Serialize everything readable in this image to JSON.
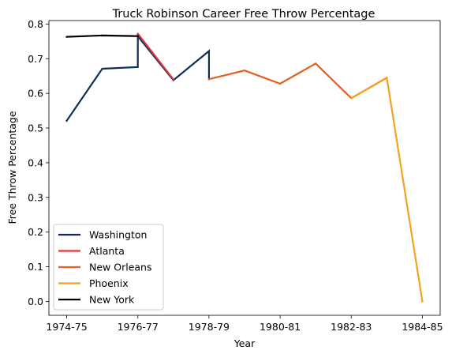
{
  "chart_data": {
    "type": "line",
    "title": "Truck Robinson Career Free Throw Percentage",
    "xlabel": "Year",
    "ylabel": "Free Throw Percentage",
    "xlim": [
      -0.5,
      10.5
    ],
    "ylim": [
      -0.04,
      0.81
    ],
    "x_ticks": [
      {
        "x": 0,
        "label": "1974-75"
      },
      {
        "x": 2,
        "label": "1976-77"
      },
      {
        "x": 4,
        "label": "1978-79"
      },
      {
        "x": 6,
        "label": "1980-81"
      },
      {
        "x": 8,
        "label": "1982-83"
      },
      {
        "x": 10,
        "label": "1984-85"
      }
    ],
    "y_ticks": [
      0.0,
      0.1,
      0.2,
      0.3,
      0.4,
      0.5,
      0.6,
      0.7,
      0.8
    ],
    "y_tick_labels": [
      "0.0",
      "0.1",
      "0.2",
      "0.3",
      "0.4",
      "0.5",
      "0.6",
      "0.7",
      "0.8"
    ],
    "legend_position": "lower-left",
    "series": [
      {
        "name": "Washington",
        "color": "#0d2f57",
        "points": [
          [
            0,
            0.521
          ],
          [
            1,
            0.671
          ],
          [
            2,
            0.676
          ],
          [
            2,
            0.765
          ],
          [
            3,
            0.638
          ],
          [
            4,
            0.722
          ],
          [
            4,
            0.641
          ]
        ]
      },
      {
        "name": "Atlanta",
        "color": "#e0343b",
        "points": [
          [
            2,
            0.772
          ],
          [
            3,
            0.64
          ]
        ]
      },
      {
        "name": "New Orleans",
        "color": "#e46020",
        "points": [
          [
            4,
            0.641
          ],
          [
            5,
            0.666
          ],
          [
            6,
            0.628
          ],
          [
            7,
            0.686
          ],
          [
            8,
            0.586
          ],
          [
            9,
            0.645
          ]
        ]
      },
      {
        "name": "Phoenix",
        "color": "#f5a020",
        "points": [
          [
            8,
            0.586
          ],
          [
            9,
            0.645
          ],
          [
            10,
            0.0
          ]
        ]
      },
      {
        "name": "New York",
        "color": "#000000",
        "points": [
          [
            0,
            0.763
          ],
          [
            1,
            0.767
          ],
          [
            2,
            0.765
          ]
        ]
      }
    ]
  }
}
